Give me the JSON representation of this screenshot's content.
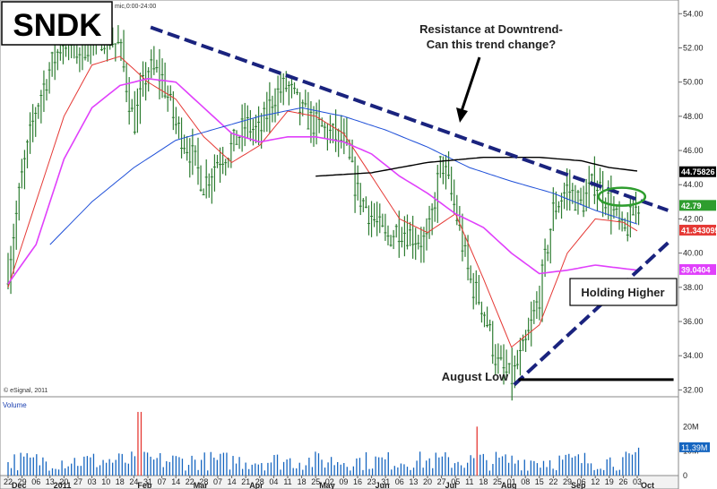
{
  "header": {
    "symbol": "SNDK",
    "interval_text": "mic,0:00-24:00"
  },
  "annotations": {
    "resistance_line1": "Resistance at Downtrend-",
    "resistance_line2": "Can this trend change?",
    "holding": "Holding Higher",
    "august_low": "August Low"
  },
  "footer": {
    "credit": "© eSignal, 2011",
    "volume_label": "Volume"
  },
  "colors": {
    "price_bar": "#2e7d32",
    "ma_short": "#e53935",
    "ma_mid": "#e040fb",
    "ma_long": "#1e4fd8",
    "ma_200": "#000000",
    "trendline": "#1a237e",
    "volume_bar": "#1565c0",
    "volume_spike": "#e53935",
    "highlight": "#2e9d2e"
  },
  "chart_data": {
    "type": "line",
    "title": "",
    "price_axis": {
      "ylim": [
        31.6,
        54.8
      ],
      "ticks": [
        54,
        52,
        50,
        48,
        46,
        44,
        42,
        40,
        38,
        36,
        34,
        32
      ],
      "tick_labels": [
        "54.00",
        "52.00",
        "50.00",
        "48.00",
        "46.00",
        "44.00",
        "42.00",
        "40.00",
        "38.00",
        "36.00",
        "34.00",
        "32.00"
      ]
    },
    "volume_axis": {
      "ylim": [
        0,
        30
      ],
      "tick_labels": [
        "20M",
        "10M",
        "0"
      ],
      "ticks": [
        20,
        10,
        0
      ]
    },
    "x_axis": {
      "day_ticks": [
        "22",
        "29",
        "06",
        "13",
        "20",
        "27",
        "03",
        "10",
        "18",
        "24",
        "31",
        "07",
        "14",
        "22",
        "28",
        "07",
        "14",
        "21",
        "28",
        "04",
        "11",
        "18",
        "25",
        "02",
        "09",
        "16",
        "23",
        "31",
        "06",
        "13",
        "20",
        "27",
        "05",
        "11",
        "18",
        "25",
        "01",
        "08",
        "15",
        "22",
        "29",
        "06",
        "12",
        "19",
        "26",
        "03"
      ],
      "month_labels": [
        {
          "label": "Dec",
          "at_tick": 0
        },
        {
          "label": "2011",
          "at_tick": 3
        },
        {
          "label": "Feb",
          "at_tick": 9
        },
        {
          "label": "Mar",
          "at_tick": 13
        },
        {
          "label": "Apr",
          "at_tick": 17
        },
        {
          "label": "May",
          "at_tick": 22
        },
        {
          "label": "Jun",
          "at_tick": 26
        },
        {
          "label": "Jul",
          "at_tick": 31
        },
        {
          "label": "Aug",
          "at_tick": 35
        },
        {
          "label": "Sep",
          "at_tick": 40
        },
        {
          "label": "Oct",
          "at_tick": 45
        }
      ]
    },
    "price_labels": [
      {
        "value": 44.75826,
        "text": "44.75826",
        "bg": "#000000",
        "color": "#ffffff"
      },
      {
        "value": 42.79,
        "text": "42.79",
        "bg": "#2e9d2e",
        "color": "#ffffff"
      },
      {
        "value": 41.343095,
        "text": "41.343095",
        "bg": "#e53935",
        "color": "#ffffff"
      },
      {
        "value": 39.0404,
        "text": "39.0404",
        "bg": "#e040fb",
        "color": "#ffffff"
      }
    ],
    "volume_last_label": "11.39M",
    "series": [
      {
        "name": "",
        "role": "price_close",
        "x": [
          0,
          1,
          2,
          3,
          4,
          5,
          6,
          7,
          8,
          9,
          10,
          11,
          12,
          13,
          14,
          15,
          16,
          17,
          18,
          19,
          20,
          21,
          22,
          23,
          24,
          25,
          26,
          27,
          28,
          29,
          30,
          31,
          32,
          33,
          34,
          35,
          36,
          37,
          38,
          39,
          40,
          41,
          42,
          43,
          44,
          45
        ],
        "values": [
          39.0,
          44.5,
          48.5,
          50.8,
          52.5,
          51.8,
          52.4,
          52.8,
          52.0,
          47.5,
          50.8,
          50.3,
          47.5,
          46.0,
          44.0,
          45.5,
          46.2,
          47.5,
          47.0,
          49.2,
          49.8,
          48.2,
          47.5,
          47.0,
          46.5,
          43.5,
          42.2,
          40.8,
          41.5,
          41.0,
          40.6,
          45.5,
          42.5,
          38.5,
          36.8,
          33.5,
          32.6,
          34.5,
          37.5,
          42.5,
          43.8,
          42.8,
          44.2,
          43.0,
          41.0,
          42.8
        ]
      },
      {
        "name": "",
        "role": "ma_short",
        "x": [
          0,
          2,
          4,
          6,
          8,
          10,
          12,
          14,
          16,
          18,
          20,
          22,
          24,
          26,
          28,
          30,
          32,
          34,
          36,
          38,
          40,
          42,
          44,
          45
        ],
        "values": [
          38.0,
          43.0,
          48.0,
          51.0,
          51.5,
          50.0,
          49.0,
          46.8,
          45.3,
          46.3,
          48.3,
          48.0,
          47.0,
          44.5,
          42.0,
          41.2,
          42.3,
          38.5,
          34.5,
          35.8,
          40.0,
          42.0,
          41.8,
          41.3
        ]
      },
      {
        "name": "",
        "role": "ma_mid",
        "x": [
          0,
          2,
          4,
          6,
          8,
          10,
          12,
          14,
          16,
          18,
          20,
          22,
          24,
          26,
          28,
          30,
          32,
          34,
          36,
          38,
          40,
          42,
          44,
          45
        ],
        "values": [
          38.2,
          40.5,
          45.5,
          48.5,
          49.8,
          50.2,
          50.0,
          48.5,
          47.0,
          46.5,
          46.8,
          46.8,
          46.5,
          45.8,
          44.5,
          43.5,
          42.3,
          41.5,
          40.0,
          38.8,
          39.0,
          39.3,
          39.1,
          39.0
        ]
      },
      {
        "name": "",
        "role": "ma_long",
        "x": [
          3,
          6,
          9,
          12,
          15,
          18,
          21,
          24,
          27,
          30,
          33,
          36,
          39,
          42,
          45
        ],
        "values": [
          40.5,
          43.0,
          45.0,
          46.6,
          47.3,
          48.0,
          48.5,
          48.0,
          47.2,
          46.2,
          45.0,
          44.2,
          43.5,
          42.5,
          41.7
        ]
      },
      {
        "name": "",
        "role": "ma_200",
        "x": [
          22,
          26,
          30,
          34,
          38,
          41,
          43,
          45
        ],
        "values": [
          44.5,
          44.7,
          45.3,
          45.6,
          45.6,
          45.4,
          45.0,
          44.8
        ]
      }
    ],
    "volume": {
      "spikes": [
        {
          "x": 9.4,
          "value": 26
        },
        {
          "x": 33.5,
          "value": 20
        }
      ],
      "last": 11.39
    },
    "trendlines": [
      {
        "role": "resistance",
        "from": {
          "x": 10.2,
          "y": 53.2
        },
        "to": {
          "x": 47.2,
          "y": 42.5
        }
      },
      {
        "role": "support",
        "from": {
          "x": 36.2,
          "y": 32.3
        },
        "to": {
          "x": 47.2,
          "y": 40.6
        }
      }
    ],
    "horizontal_line": {
      "y": 32.6,
      "from_x": 36.5,
      "to_x": 47.6
    },
    "highlight_ellipse": {
      "x": 43.9,
      "y": 43.3
    },
    "grid": false,
    "legend": "none"
  }
}
